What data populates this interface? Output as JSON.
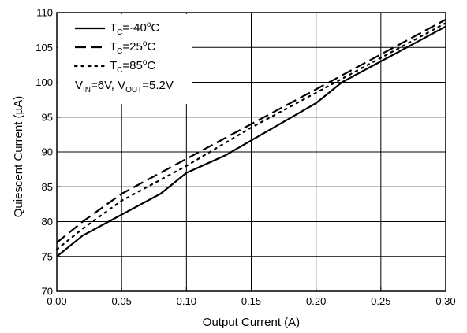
{
  "chart_data": {
    "type": "line",
    "xlabel": "Output Current (A)",
    "ylabel": "Quiescent Current (µA)",
    "xlim": [
      0.0,
      0.3
    ],
    "ylim": [
      70,
      110
    ],
    "xticks": [
      0.0,
      0.05,
      0.1,
      0.15,
      0.2,
      0.25,
      0.3
    ],
    "xtick_labels": [
      "0.00",
      "0.05",
      "0.10",
      "0.15",
      "0.20",
      "0.25",
      "0.30"
    ],
    "yticks": [
      70,
      75,
      80,
      85,
      90,
      95,
      100,
      105,
      110
    ],
    "ytick_labels": [
      "70",
      "75",
      "80",
      "85",
      "90",
      "95",
      "100",
      "105",
      "110"
    ],
    "grid": true,
    "legend_position": "top-left",
    "series": [
      {
        "name": "T_C=-40°C",
        "style": "solid",
        "x": [
          0.0,
          0.02,
          0.08,
          0.1,
          0.13,
          0.2,
          0.22,
          0.3
        ],
        "y": [
          75,
          78,
          84,
          87,
          89.5,
          97,
          100,
          108
        ]
      },
      {
        "name": "T_C=25°C",
        "style": "dash",
        "x": [
          0.0,
          0.02,
          0.05,
          0.1,
          0.15,
          0.2,
          0.25,
          0.3
        ],
        "y": [
          77,
          80,
          84,
          89,
          94,
          99,
          104,
          109
        ]
      },
      {
        "name": "T_C=85°C",
        "style": "dot",
        "x": [
          0.0,
          0.02,
          0.05,
          0.1,
          0.15,
          0.2,
          0.25,
          0.3
        ],
        "y": [
          76,
          79,
          83,
          88,
          93.5,
          98.5,
          103.5,
          108.5
        ]
      }
    ],
    "legend": [
      {
        "prefix": "T",
        "sub": "C",
        "mid": "=-40",
        "sup": "o",
        "suffix": "C"
      },
      {
        "prefix": "T",
        "sub": "C",
        "mid": "=25",
        "sup": "o",
        "suffix": "C"
      },
      {
        "prefix": "T",
        "sub": "C",
        "mid": "=85",
        "sup": "o",
        "suffix": "C"
      }
    ],
    "condition": {
      "v1": "V",
      "v1_sub": "IN",
      "v1_val": "=6V, ",
      "v2": "V",
      "v2_sub": "OUT",
      "v2_val": "=5.2V"
    }
  }
}
